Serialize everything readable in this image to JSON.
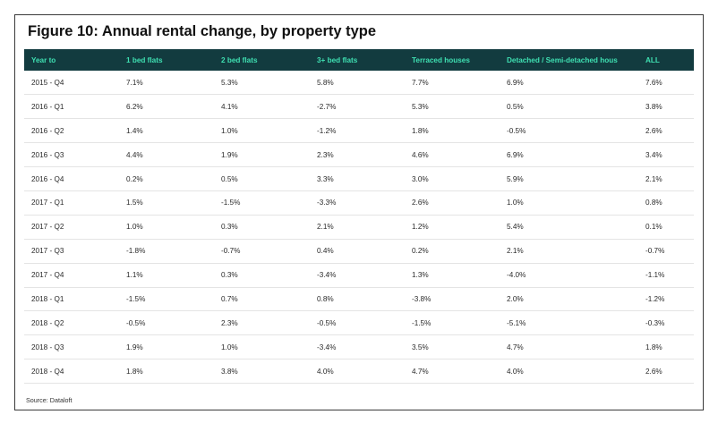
{
  "title": "Figure 10: Annual rental change, by property type",
  "table": {
    "headers": [
      "Year to",
      "1 bed flats",
      "2 bed flats",
      "3+ bed flats",
      "Terraced houses",
      "Detached / Semi-detached hous",
      "ALL"
    ],
    "rows": [
      [
        "2015 - Q4",
        "7.1%",
        "5.3%",
        "5.8%",
        "7.7%",
        "6.9%",
        "7.6%"
      ],
      [
        "2016 - Q1",
        "6.2%",
        "4.1%",
        "-2.7%",
        "5.3%",
        "0.5%",
        "3.8%"
      ],
      [
        "2016 - Q2",
        "1.4%",
        "1.0%",
        "-1.2%",
        "1.8%",
        "-0.5%",
        "2.6%"
      ],
      [
        "2016 - Q3",
        "4.4%",
        "1.9%",
        "2.3%",
        "4.6%",
        "6.9%",
        "3.4%"
      ],
      [
        "2016 - Q4",
        "0.2%",
        "0.5%",
        "3.3%",
        "3.0%",
        "5.9%",
        "2.1%"
      ],
      [
        "2017 - Q1",
        "1.5%",
        "-1.5%",
        "-3.3%",
        "2.6%",
        "1.0%",
        "0.8%"
      ],
      [
        "2017 - Q2",
        "1.0%",
        "0.3%",
        "2.1%",
        "1.2%",
        "5.4%",
        "0.1%"
      ],
      [
        "2017 - Q3",
        "-1.8%",
        "-0.7%",
        "0.4%",
        "0.2%",
        "2.1%",
        "-0.7%"
      ],
      [
        "2017 - Q4",
        "1.1%",
        "0.3%",
        "-3.4%",
        "1.3%",
        "-4.0%",
        "-1.1%"
      ],
      [
        "2018 - Q1",
        "-1.5%",
        "0.7%",
        "0.8%",
        "-3.8%",
        "2.0%",
        "-1.2%"
      ],
      [
        "2018 - Q2",
        "-0.5%",
        "2.3%",
        "-0.5%",
        "-1.5%",
        "-5.1%",
        "-0.3%"
      ],
      [
        "2018 - Q3",
        "1.9%",
        "1.0%",
        "-3.4%",
        "3.5%",
        "4.7%",
        "1.8%"
      ],
      [
        "2018 - Q4",
        "1.8%",
        "3.8%",
        "4.0%",
        "4.7%",
        "4.0%",
        "2.6%"
      ]
    ]
  },
  "source": "Source: Dataloft",
  "colors": {
    "header_bg": "#123b3f",
    "header_text": "#3fe0b2"
  }
}
